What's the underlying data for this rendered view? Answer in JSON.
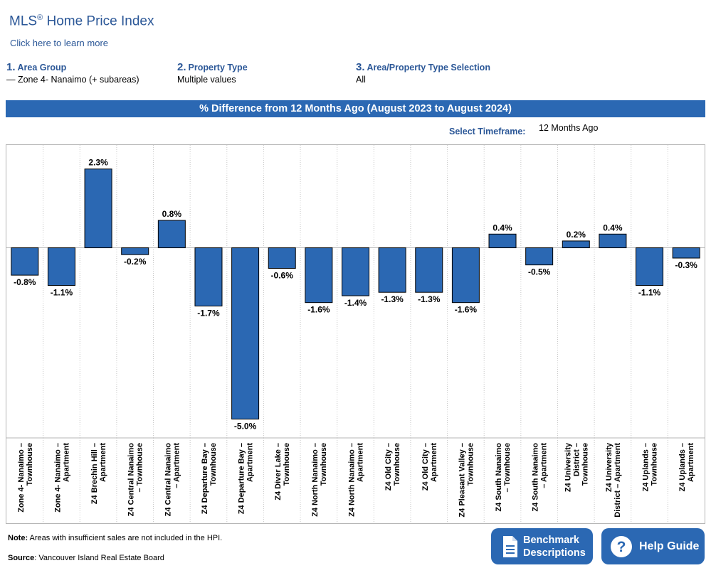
{
  "header": {
    "title": "MLS",
    "title_reg": "®",
    "title_rest": " Home Price Index",
    "learn_more": "Click here to learn more"
  },
  "filters": [
    {
      "num": "1.",
      "label": "Area Group",
      "value": "— Zone 4- Nanaimo (+ subareas)"
    },
    {
      "num": "2.",
      "label": "Property Type",
      "value": "Multiple values"
    },
    {
      "num": "3.",
      "label": "Area/Property Type Selection",
      "value": "All"
    }
  ],
  "timeframe": {
    "label": "Select Timeframe:",
    "value": "12 Months Ago"
  },
  "chart_data": {
    "type": "bar",
    "title": "% Difference from 12 Months Ago (August 2023 to August 2024)",
    "categories": [
      [
        "Zone 4- Nanaimo –",
        "Townhouse"
      ],
      [
        "Zone 4- Nanaimo –",
        "Apartment"
      ],
      [
        "Z4 Brechin Hill –",
        "Apartment"
      ],
      [
        "Z4 Central Nanaimo",
        "– Townhouse"
      ],
      [
        "Z4 Central Nanaimo",
        "– Apartment"
      ],
      [
        "Z4 Departure Bay –",
        "Townhouse"
      ],
      [
        "Z4 Departure Bay –",
        "Apartment"
      ],
      [
        "Z4 Diver Lake –",
        "Townhouse"
      ],
      [
        "Z4 North Nanaimo –",
        "Townhouse"
      ],
      [
        "Z4 North Nanaimo –",
        "Apartment"
      ],
      [
        "Z4 Old City –",
        "Townhouse"
      ],
      [
        "Z4 Old City –",
        "Apartment"
      ],
      [
        "Z4 Pleasant Valley –",
        "Townhouse"
      ],
      [
        "Z4 South Nanaimo",
        "– Townhouse"
      ],
      [
        "Z4 South Nanaimo",
        "– Apartment"
      ],
      [
        "Z4 University",
        "District –",
        "Townhouse"
      ],
      [
        "Z4 University",
        "District – Apartment"
      ],
      [
        "Z4 Uplands –",
        "Townhouse"
      ],
      [
        "Z4 Uplands –",
        "Apartment"
      ]
    ],
    "values": [
      -0.8,
      -1.1,
      2.3,
      -0.2,
      0.8,
      -1.7,
      -5.0,
      -0.6,
      -1.6,
      -1.4,
      -1.3,
      -1.3,
      -1.6,
      0.4,
      -0.5,
      0.2,
      0.4,
      -1.1,
      -0.3
    ],
    "labels": [
      "-0.8%",
      "-1.1%",
      "2.3%",
      "-0.2%",
      "0.8%",
      "-1.7%",
      "-5.0%",
      "-0.6%",
      "-1.6%",
      "-1.4%",
      "-1.3%",
      "-1.3%",
      "-1.6%",
      "0.4%",
      "-0.5%",
      "0.2%",
      "0.4%",
      "-1.1%",
      "-0.3%"
    ],
    "ylim": [
      -5.55,
      3.0
    ],
    "grid": true,
    "colors": {
      "bar": "#2b68b3",
      "grid": "#c8c8c8",
      "border": "#b5b5b5"
    }
  },
  "footer": {
    "note_label": "Note:",
    "note_text": " Areas with insufficient sales are not included in the HPI.",
    "source_label": "Source",
    "source_text": ": Vancouver Island Real Estate Board"
  },
  "buttons": {
    "benchmark_line1": "Benchmark",
    "benchmark_line2": "Descriptions",
    "benchmark_icon": "document-icon",
    "help": "Help Guide",
    "help_icon": "question-icon"
  }
}
